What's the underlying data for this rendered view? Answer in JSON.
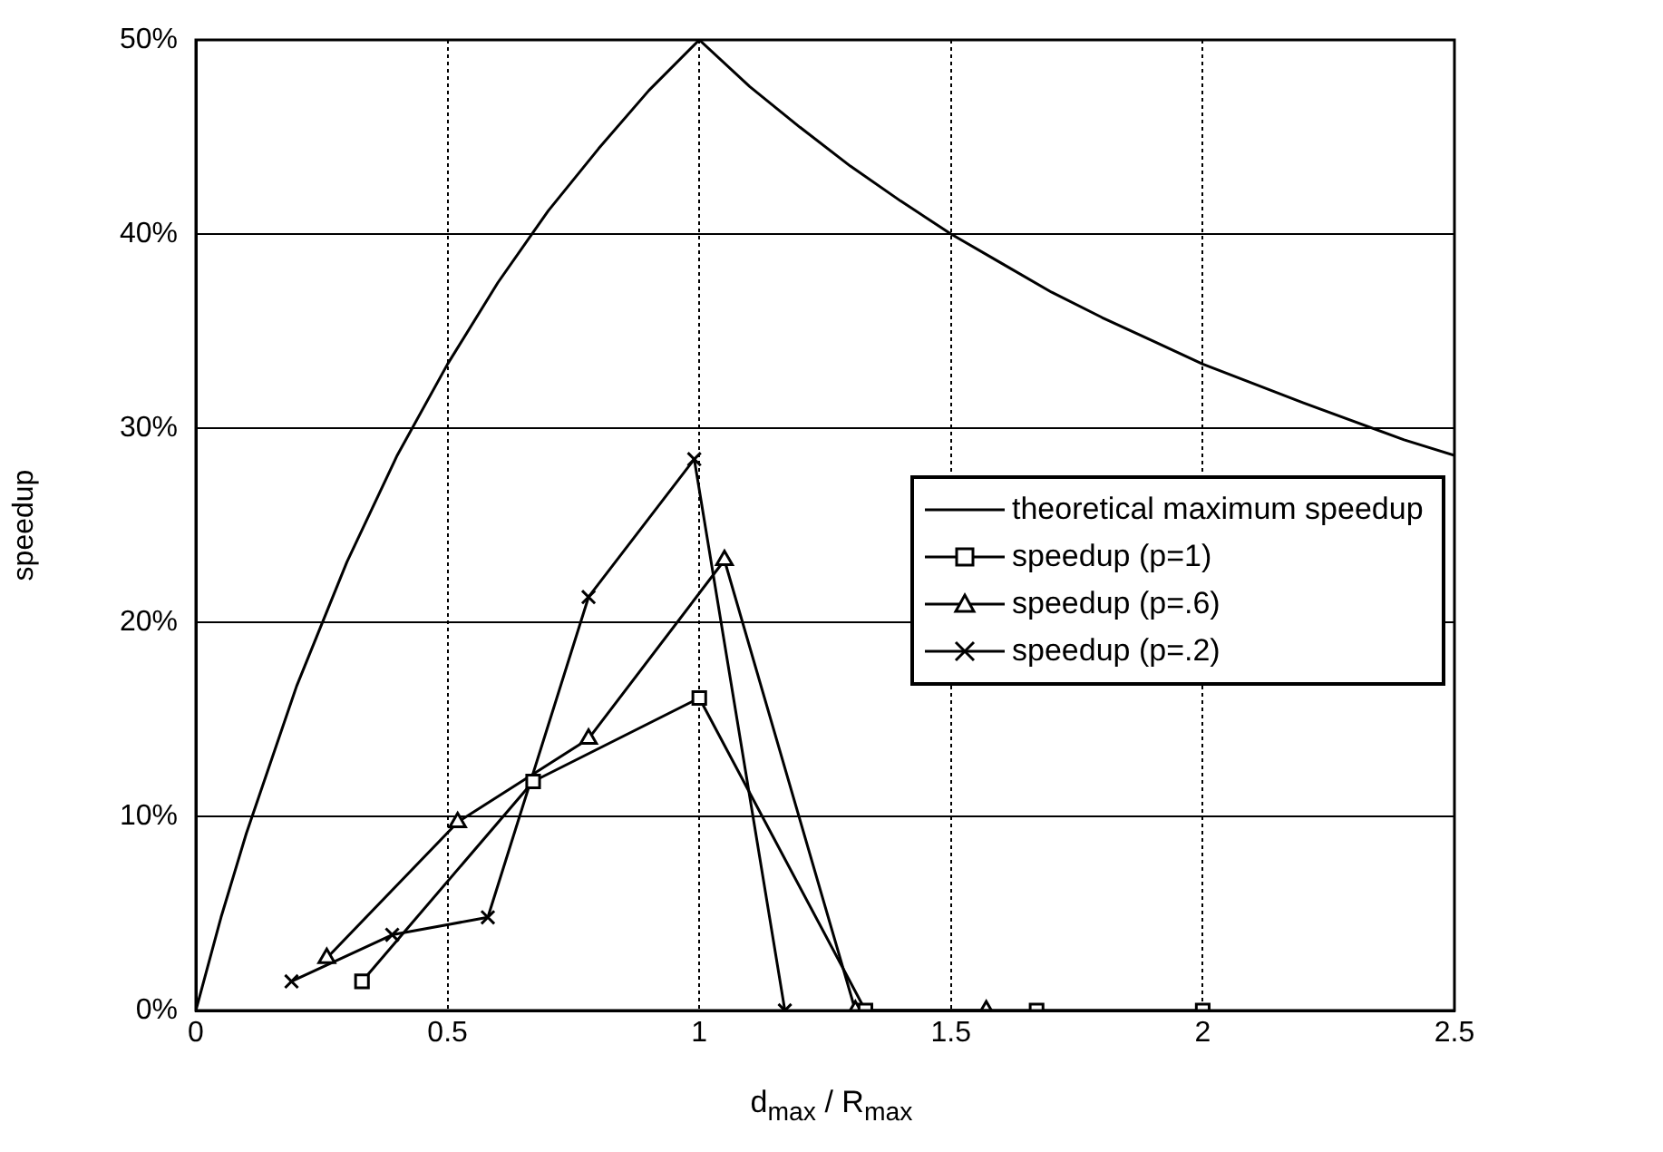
{
  "chart_data": {
    "type": "line",
    "xlabel": "d$_{max}$ / R$_{max}$",
    "ylabel": "speedup",
    "xlim": [
      0,
      2.5
    ],
    "xticks": [
      0,
      0.5,
      1,
      1.5,
      2,
      2.5
    ],
    "ylim": [
      0,
      50
    ],
    "yticks": [
      {
        "value": 0,
        "label": "0%"
      },
      {
        "value": 10,
        "label": "10%"
      },
      {
        "value": 20,
        "label": "20%"
      },
      {
        "value": 30,
        "label": "30%"
      },
      {
        "value": 40,
        "label": "40%"
      },
      {
        "value": 50,
        "label": "50%"
      }
    ],
    "grid": true,
    "legend": "right",
    "series": [
      {
        "name": "theoretical maximum speedup",
        "color": "#000000",
        "marker": "none",
        "x": [
          0,
          0.05,
          0.1,
          0.2,
          0.3,
          0.4,
          0.5,
          0.6,
          0.7,
          0.8,
          0.9,
          1,
          1.1,
          1.2,
          1.3,
          1.4,
          1.5,
          1.6,
          1.7,
          1.8,
          1.9,
          2,
          2.2,
          2.4,
          2.5
        ],
        "values": [
          0,
          4.8,
          9.1,
          16.7,
          23.1,
          28.6,
          33.3,
          37.5,
          41.2,
          44.4,
          47.4,
          50,
          47.6,
          45.5,
          43.5,
          41.7,
          40,
          38.5,
          37,
          35.7,
          34.5,
          33.3,
          31.3,
          29.4,
          28.6
        ]
      },
      {
        "name": "speedup (p=1)",
        "color": "#000000",
        "marker": "square",
        "x": [
          0.33,
          0.67,
          1,
          1.33,
          1.67,
          2
        ],
        "values": [
          1.5,
          11.8,
          16.1,
          0,
          0,
          0
        ]
      },
      {
        "name": "speedup (p=.6)",
        "color": "#000000",
        "marker": "triangle",
        "x": [
          0.26,
          0.52,
          0.78,
          1.05,
          1.31,
          1.57
        ],
        "values": [
          2.7,
          9.7,
          14,
          23.2,
          0,
          0
        ]
      },
      {
        "name": "speedup (p=.2)",
        "color": "#000000",
        "marker": "cross",
        "x": [
          0.19,
          0.39,
          0.58,
          0.78,
          0.99,
          1.17
        ],
        "values": [
          1.5,
          3.9,
          4.8,
          21.3,
          28.4,
          0
        ]
      }
    ]
  }
}
